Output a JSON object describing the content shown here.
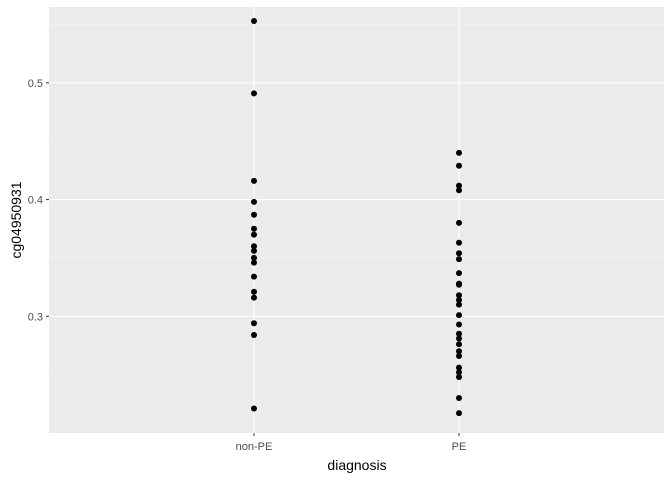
{
  "chart_data": {
    "type": "scatter",
    "title": "",
    "xlabel": "diagnosis",
    "ylabel": "cg04950931",
    "categories": [
      "non-PE",
      "PE"
    ],
    "ylim": [
      0.2,
      0.565
    ],
    "yticks": [
      0.3,
      0.4,
      0.5
    ],
    "ytick_labels": [
      "0.3",
      "0.4",
      "0.5"
    ],
    "grid": true,
    "legend": "none",
    "colors": {
      "panel_background": "#ebebeb",
      "grid_major": "#ffffff",
      "grid_minor": "#f6f6f6",
      "point": "#000000",
      "tick": "#333333"
    },
    "series": [
      {
        "category": "non-PE",
        "values": [
          0.553,
          0.491,
          0.416,
          0.398,
          0.387,
          0.375,
          0.37,
          0.36,
          0.356,
          0.35,
          0.346,
          0.334,
          0.321,
          0.316,
          0.294,
          0.284,
          0.221
        ]
      },
      {
        "category": "PE",
        "values": [
          0.44,
          0.429,
          0.412,
          0.408,
          0.38,
          0.363,
          0.354,
          0.349,
          0.337,
          0.328,
          0.327,
          0.318,
          0.314,
          0.31,
          0.301,
          0.293,
          0.285,
          0.281,
          0.276,
          0.27,
          0.266,
          0.256,
          0.252,
          0.248,
          0.23,
          0.217
        ]
      }
    ]
  }
}
